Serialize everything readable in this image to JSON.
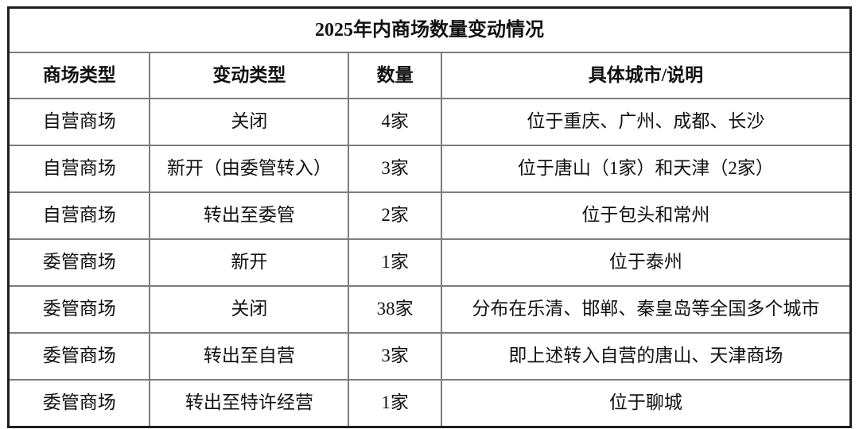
{
  "table": {
    "title": "2025年内商场数量变动情况",
    "headers": [
      "商场类型",
      "变动类型",
      "数量",
      "具体城市/说明"
    ],
    "rows": [
      [
        "自营商场",
        "关闭",
        "4家",
        "位于重庆、广州、成都、长沙"
      ],
      [
        "自营商场",
        "新开（由委管转入）",
        "3家",
        "位于唐山（1家）和天津（2家）"
      ],
      [
        "自营商场",
        "转出至委管",
        "2家",
        "位于包头和常州"
      ],
      [
        "委管商场",
        "新开",
        "1家",
        "位于泰州"
      ],
      [
        "委管商场",
        "关闭",
        "38家",
        "分布在乐清、邯郸、秦皇岛等全国多个城市"
      ],
      [
        "委管商场",
        "转出至自营",
        "3家",
        "即上述转入自营的唐山、天津商场"
      ],
      [
        "委管商场",
        "转出至特许经营",
        "1家",
        "位于聊城"
      ]
    ],
    "colors": {
      "outer_border": "#1f1f1f",
      "inner_border": "#7d7d7d",
      "text": "#111111",
      "background": "#ffffff"
    }
  }
}
